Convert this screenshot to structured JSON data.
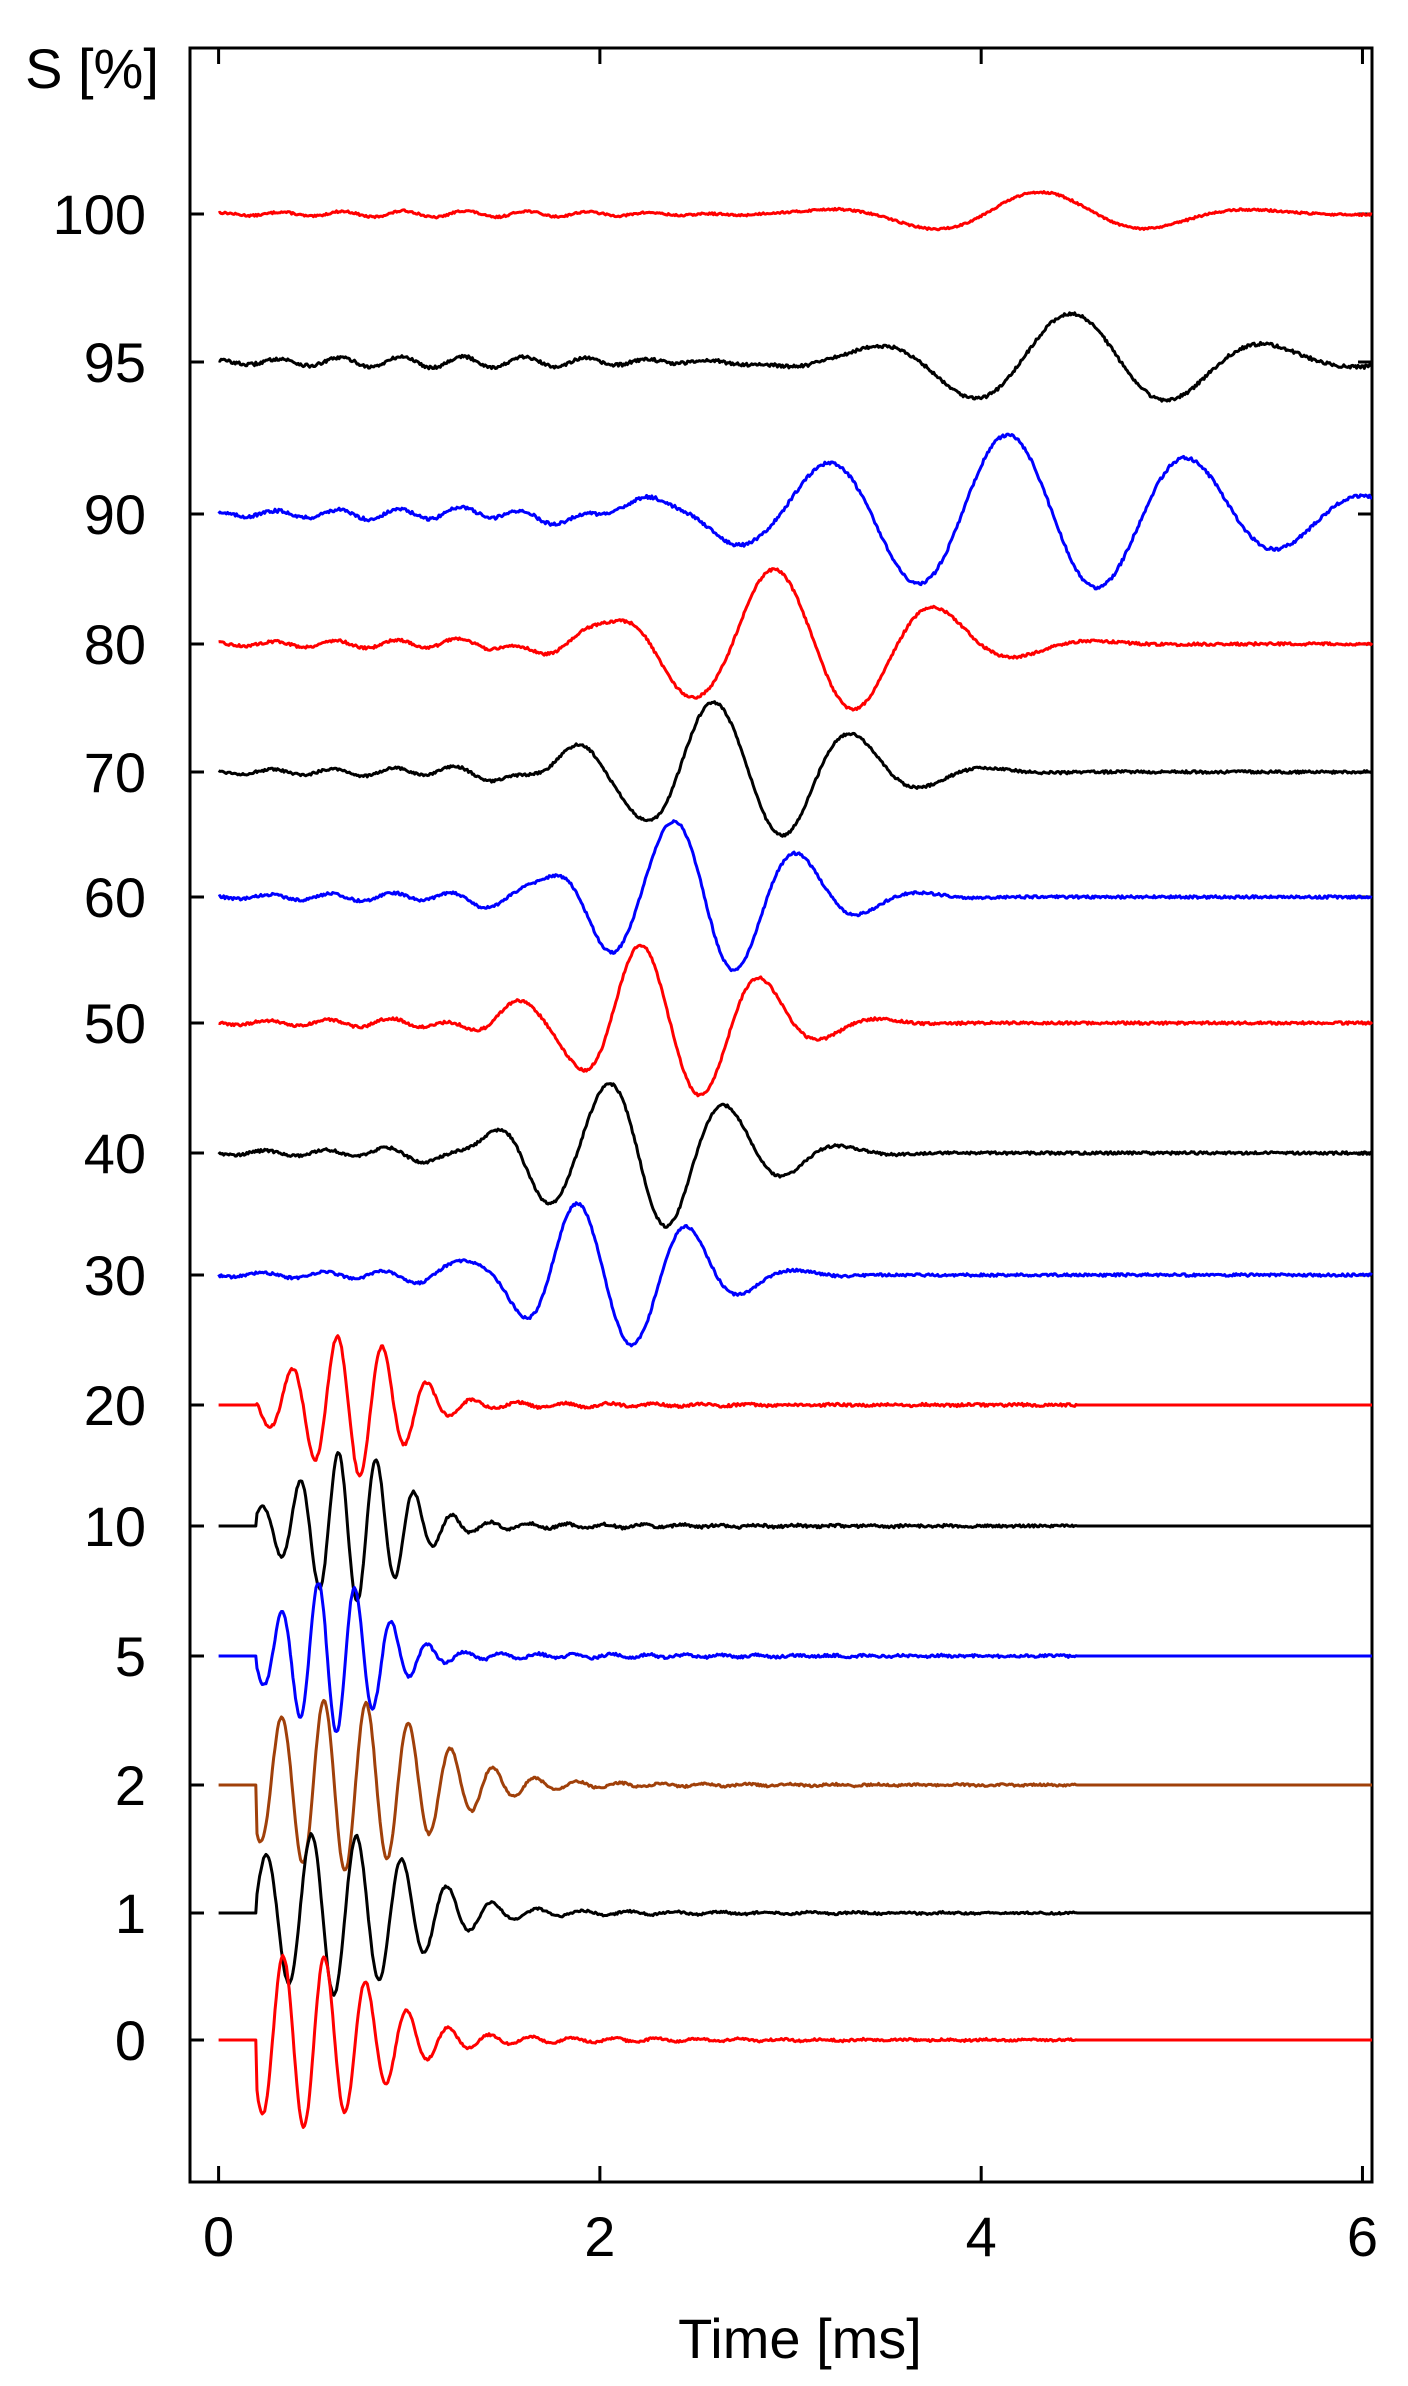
{
  "chart_data": {
    "type": "line",
    "title": "",
    "xlabel": "Time [ms]",
    "ylabel": "S [%]",
    "xlim": [
      -0.15,
      6.05
    ],
    "x_ticks": [
      "0",
      "2",
      "4",
      "6"
    ],
    "x_tick_values": [
      0,
      2,
      4,
      6
    ],
    "grid": false,
    "legend": "none",
    "traces": [
      {
        "label": "100",
        "color": "#ff0000",
        "type": "low",
        "center": 4.3,
        "freq": 0.85,
        "amp": 1.0,
        "width": 0.9,
        "noise": 0.15,
        "split": null
      },
      {
        "label": "95",
        "color": "#000000",
        "type": "low",
        "center": 4.5,
        "freq": 0.95,
        "amp": 2.2,
        "width": 1.0,
        "noise": 0.25,
        "split": null
      },
      {
        "label": "90",
        "color": "#0000ff",
        "type": "low",
        "center": 4.2,
        "freq": 1.05,
        "amp": 3.6,
        "width": 1.5,
        "noise": 0.25,
        "split": null
      },
      {
        "label": "80",
        "color": "#ff0000",
        "type": "low",
        "center": 3.0,
        "freq": 1.15,
        "amp": 3.4,
        "width": 0.9,
        "noise": 0.2,
        "split": null
      },
      {
        "label": "70",
        "color": "#000000",
        "type": "low",
        "center": 2.7,
        "freq": 1.35,
        "amp": 3.2,
        "width": 0.8,
        "noise": 0.2,
        "split": null
      },
      {
        "label": "60",
        "color": "#0000ff",
        "type": "low",
        "center": 2.5,
        "freq": 1.5,
        "amp": 3.6,
        "width": 0.7,
        "noise": 0.2,
        "split": null
      },
      {
        "label": "50",
        "color": "#ff0000",
        "type": "low",
        "center": 2.35,
        "freq": 1.55,
        "amp": 3.6,
        "width": 0.65,
        "noise": 0.2,
        "split": null
      },
      {
        "label": "40",
        "color": "#000000",
        "type": "low",
        "center": 2.2,
        "freq": 1.6,
        "amp": 3.4,
        "width": 0.7,
        "noise": 0.2,
        "split": null
      },
      {
        "label": "30",
        "color": "#0000ff",
        "type": "low",
        "center": 2.05,
        "freq": 1.7,
        "amp": 3.4,
        "width": 0.6,
        "noise": 0.2,
        "split": null
      },
      {
        "label": "20",
        "color": "#ff0000",
        "type": "high",
        "center": 0.7,
        "freq": 4.2,
        "amp": 3.0,
        "width": 0.35,
        "noise": 0.25,
        "split": 4.5
      },
      {
        "label": "10",
        "color": "#000000",
        "type": "high",
        "center": 0.7,
        "freq": 5.0,
        "amp": 3.2,
        "width": 0.35,
        "noise": 0.25,
        "split": 4.5
      },
      {
        "label": "5",
        "color": "#0000ff",
        "type": "high",
        "center": 0.6,
        "freq": 5.2,
        "amp": 3.2,
        "width": 0.33,
        "noise": 0.25,
        "split": 4.5
      },
      {
        "label": "2",
        "color": "#a0400a",
        "type": "high",
        "center": 0.65,
        "freq": 4.5,
        "amp": 3.6,
        "width": 0.6,
        "noise": 0.2,
        "split": 4.5
      },
      {
        "label": "1",
        "color": "#000000",
        "type": "high",
        "center": 0.6,
        "freq": 4.2,
        "amp": 3.4,
        "width": 0.55,
        "noise": 0.2,
        "split": 4.5
      },
      {
        "label": "0",
        "color": "#ff0000",
        "type": "high",
        "center": 0.45,
        "freq": 4.6,
        "amp": 3.6,
        "width": 0.5,
        "noise": 0.2,
        "split": 4.5
      }
    ]
  }
}
